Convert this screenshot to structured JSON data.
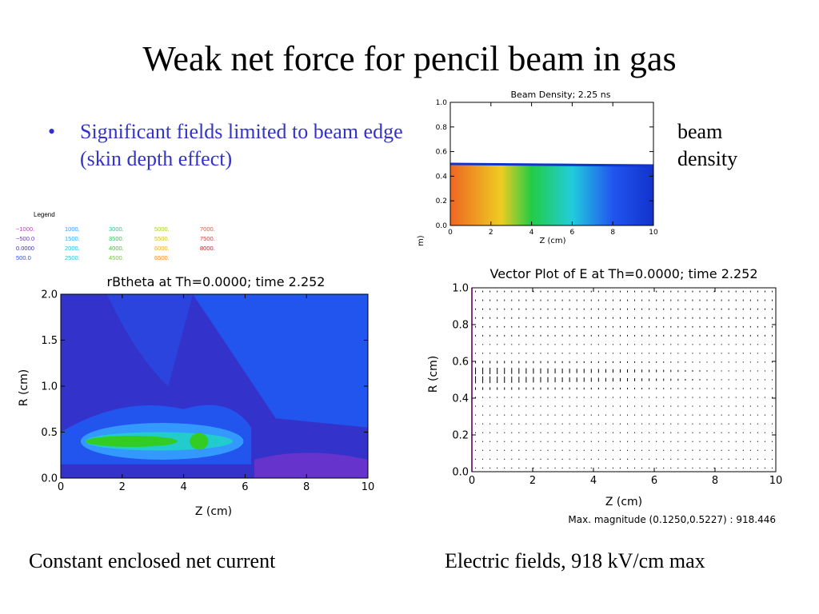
{
  "slide": {
    "title": "Weak net force for pencil beam in gas",
    "bullet": "Significant fields limited to beam edge (skin depth effect)",
    "bullet_marker": "•",
    "beam_label_line1": "beam",
    "beam_label_line2": "density",
    "caption_left": "Constant enclosed net current",
    "caption_right": "Electric fields, 918 kV/cm max"
  },
  "legend": {
    "title": "Legend",
    "entries": [
      {
        "text": "−1000.",
        "color": "#cc33cc"
      },
      {
        "text": "−500.0",
        "color": "#6633cc"
      },
      {
        "text": "0.0000",
        "color": "#3333cc"
      },
      {
        "text": "500.0",
        "color": "#2255ee"
      },
      {
        "text": "1000.",
        "color": "#3399ff"
      },
      {
        "text": "1500.",
        "color": "#33aaee"
      },
      {
        "text": "2000.",
        "color": "#22bbee"
      },
      {
        "text": "2500.",
        "color": "#33bbcc"
      },
      {
        "text": "3000.",
        "color": "#22cc88"
      },
      {
        "text": "3500.",
        "color": "#22cc44"
      },
      {
        "text": "4000.",
        "color": "#33cc22"
      },
      {
        "text": "4500.",
        "color": "#66cc22"
      },
      {
        "text": "5000.",
        "color": "#aacc22"
      },
      {
        "text": "5500.",
        "color": "#ccbb22"
      },
      {
        "text": "6000.",
        "color": "#eeaa22"
      },
      {
        "text": "6500.",
        "color": "#ee8822"
      },
      {
        "text": "7000.",
        "color": "#ee5522"
      },
      {
        "text": "7500.",
        "color": "#ee3322"
      },
      {
        "text": "8000.",
        "color": "#dd1111"
      }
    ]
  },
  "chart_data": [
    {
      "type": "heatmap",
      "title": "Beam Density; 2.25 ns",
      "xlabel": "Z (cm)",
      "ylabel": "R (cm)",
      "xlim": [
        0,
        10
      ],
      "ylim": [
        0,
        1.0
      ],
      "xticks": [
        "0",
        "2",
        "4",
        "6",
        "8",
        "10"
      ],
      "yticks": [
        "0.0",
        "0.2",
        "0.4",
        "0.6",
        "0.8",
        "1.0"
      ],
      "beam_edge_r": 0.5,
      "colors": {
        "high": "#ee6622",
        "mid": "#22cc44",
        "low": "#2255ee",
        "edge": "#1133cc"
      }
    },
    {
      "type": "heatmap",
      "title": "rBtheta at Th=0.0000; time 2.252",
      "xlabel": "Z (cm)",
      "ylabel": "R (cm)",
      "xlim": [
        0,
        10
      ],
      "ylim": [
        0,
        2.0
      ],
      "xticks": [
        "0",
        "2",
        "4",
        "6",
        "8",
        "10"
      ],
      "yticks": [
        "0.0",
        "0.5",
        "1.0",
        "1.5",
        "2.0"
      ],
      "peak_band_r": 0.4,
      "colors": {
        "background": "#3333cc",
        "upper_right": "#2255ee",
        "band": "#33cc22",
        "band_outer": "#3399ff",
        "negative": "#6633cc"
      }
    },
    {
      "type": "scatter",
      "title": "Vector Plot of E at Th=0.0000; time 2.252",
      "xlabel": "Z (cm)",
      "ylabel": "R (cm)",
      "xlim": [
        0,
        10
      ],
      "ylim": [
        0,
        1.0
      ],
      "xticks": [
        "0",
        "2",
        "4",
        "6",
        "8",
        "10"
      ],
      "yticks": [
        "0.0",
        "0.2",
        "0.4",
        "0.6",
        "0.8",
        "1.0"
      ],
      "note": "Max. magnitude (0.1250,0.5227) : 918.446",
      "max_location": {
        "z": 0.125,
        "r": 0.5227
      },
      "max_magnitude": 918.446
    }
  ]
}
